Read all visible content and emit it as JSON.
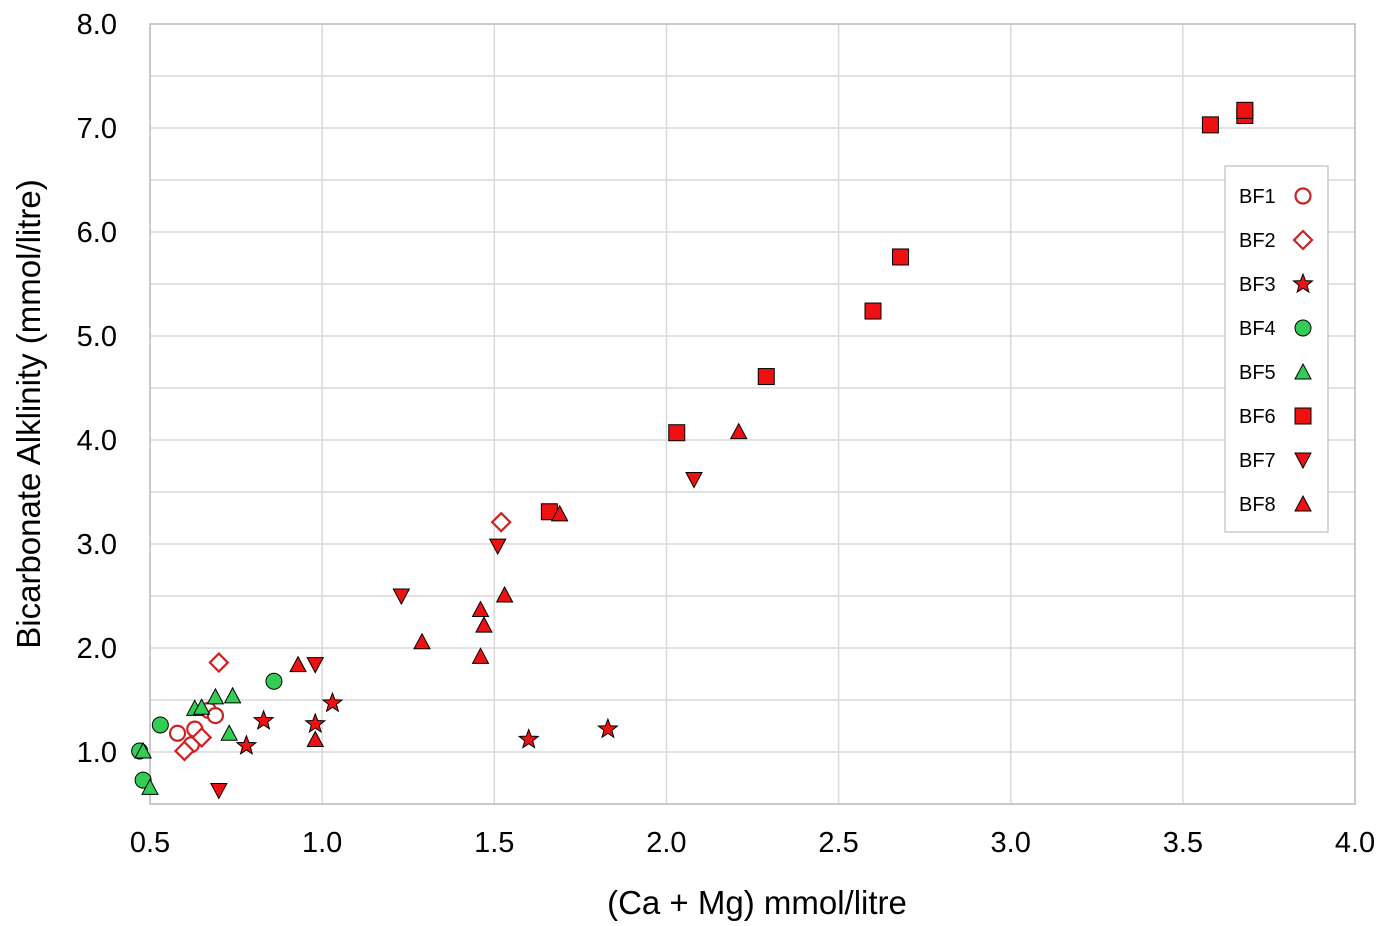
{
  "chart_data": {
    "type": "scatter",
    "title": "",
    "xlabel": "(Ca + Mg) mmol/litre",
    "ylabel": "Bicarbonate Alklinity (mmol/litre)",
    "xlim": [
      0.5,
      4.0
    ],
    "ylim": [
      0.5,
      8.0
    ],
    "x_ticks": [
      "0.5",
      "1.0",
      "1.5",
      "2.0",
      "2.5",
      "3.0",
      "3.5",
      "4.0"
    ],
    "y_ticks": [
      "1.0",
      "2.0",
      "3.0",
      "4.0",
      "5.0",
      "6.0",
      "7.0",
      "8.0"
    ],
    "grid": true,
    "legend_position": "right",
    "colors": {
      "red": "#ee1111",
      "dark_red": "#cc2222",
      "green": "#33cc55",
      "grid": "#d9d9d9"
    },
    "series": [
      {
        "name": "BF1",
        "marker": "open-circle",
        "color": "#cc2222",
        "points": [
          [
            0.58,
            1.18
          ],
          [
            0.62,
            1.07
          ],
          [
            0.63,
            1.22
          ],
          [
            0.67,
            1.4
          ],
          [
            0.69,
            1.35
          ]
        ]
      },
      {
        "name": "BF2",
        "marker": "open-diamond",
        "color": "#cc2222",
        "points": [
          [
            0.6,
            1.01
          ],
          [
            0.65,
            1.14
          ],
          [
            0.7,
            1.86
          ],
          [
            1.52,
            3.21
          ]
        ]
      },
      {
        "name": "BF3",
        "marker": "star",
        "color": "#ee1111",
        "points": [
          [
            0.78,
            1.06
          ],
          [
            0.83,
            1.3
          ],
          [
            0.98,
            1.27
          ],
          [
            1.03,
            1.47
          ],
          [
            1.6,
            1.12
          ],
          [
            1.83,
            1.22
          ]
        ]
      },
      {
        "name": "BF4",
        "marker": "circle",
        "color": "#33cc55",
        "points": [
          [
            0.47,
            1.01
          ],
          [
            0.48,
            0.73
          ],
          [
            0.53,
            1.26
          ],
          [
            0.86,
            1.68
          ]
        ]
      },
      {
        "name": "BF5",
        "marker": "triangle-up",
        "color": "#33cc55",
        "points": [
          [
            0.48,
            1.01
          ],
          [
            0.5,
            0.66
          ],
          [
            0.63,
            1.42
          ],
          [
            0.65,
            1.43
          ],
          [
            0.69,
            1.53
          ],
          [
            0.73,
            1.18
          ],
          [
            0.74,
            1.54
          ]
        ]
      },
      {
        "name": "BF6",
        "marker": "square",
        "color": "#ee1111",
        "points": [
          [
            1.66,
            3.31
          ],
          [
            2.03,
            4.07
          ],
          [
            2.29,
            4.61
          ],
          [
            2.6,
            5.24
          ],
          [
            2.68,
            5.76
          ],
          [
            3.58,
            7.03
          ],
          [
            3.68,
            7.12
          ],
          [
            3.68,
            7.17
          ]
        ]
      },
      {
        "name": "BF7",
        "marker": "triangle-down",
        "color": "#ee1111",
        "points": [
          [
            0.7,
            0.63
          ],
          [
            0.98,
            1.84
          ],
          [
            1.23,
            2.5
          ],
          [
            1.51,
            2.98
          ],
          [
            2.08,
            3.62
          ]
        ]
      },
      {
        "name": "BF8",
        "marker": "triangle-up",
        "color": "#ee1111",
        "points": [
          [
            0.93,
            1.84
          ],
          [
            0.98,
            1.12
          ],
          [
            1.29,
            2.06
          ],
          [
            1.46,
            2.37
          ],
          [
            1.46,
            1.92
          ],
          [
            1.47,
            2.22
          ],
          [
            1.53,
            2.51
          ],
          [
            1.69,
            3.29
          ],
          [
            2.21,
            4.08
          ]
        ]
      }
    ]
  }
}
